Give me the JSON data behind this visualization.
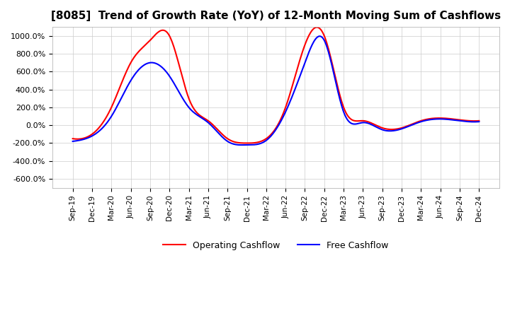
{
  "title": "[8085]  Trend of Growth Rate (YoY) of 12-Month Moving Sum of Cashflows",
  "ylabel": "",
  "ylim": [
    -700,
    1100
  ],
  "yticks": [
    -600,
    -400,
    -200,
    0,
    200,
    400,
    600,
    800,
    1000
  ],
  "background_color": "#ffffff",
  "grid_color": "#cccccc",
  "operating_color": "#ff0000",
  "free_color": "#0000ff",
  "legend_labels": [
    "Operating Cashflow",
    "Free Cashflow"
  ],
  "x_labels": [
    "Sep-19",
    "Dec-19",
    "Mar-20",
    "Jun-20",
    "Sep-20",
    "Dec-20",
    "Mar-21",
    "Jun-21",
    "Sep-21",
    "Dec-21",
    "Mar-22",
    "Jun-22",
    "Sep-22",
    "Dec-22",
    "Mar-23",
    "Jun-23",
    "Sep-23",
    "Dec-23",
    "Mar-24",
    "Jun-24",
    "Sep-24",
    "Dec-24"
  ],
  "operating_cashflow": [
    -150,
    -100,
    200,
    700,
    950,
    1000,
    300,
    50,
    -150,
    -200,
    -150,
    200,
    900,
    1000,
    200,
    50,
    -30,
    -30,
    50,
    80,
    60,
    50
  ],
  "free_cashflow": [
    -180,
    -120,
    100,
    500,
    700,
    550,
    200,
    30,
    -180,
    -220,
    -170,
    150,
    700,
    950,
    150,
    30,
    -50,
    -40,
    40,
    70,
    50,
    40
  ]
}
